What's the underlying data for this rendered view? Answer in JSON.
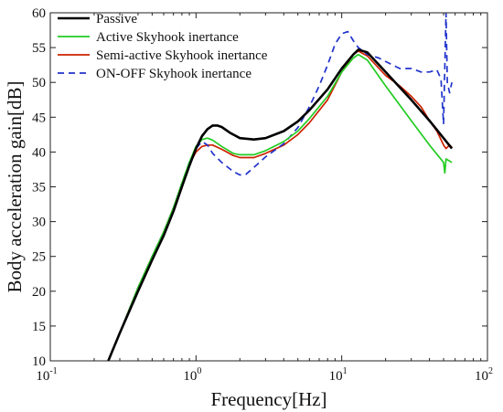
{
  "chart_data": {
    "type": "line",
    "title": "",
    "xlabel": "Frequency[Hz]",
    "ylabel": "Body acceleration gain[dB]",
    "xscale": "log",
    "xlim": [
      0.1,
      100
    ],
    "ylim": [
      10,
      60
    ],
    "x_ticks": [
      {
        "base": "10",
        "exp": "-1"
      },
      {
        "base": "10",
        "exp": "0"
      },
      {
        "base": "10",
        "exp": "1"
      },
      {
        "base": "10",
        "exp": "2"
      }
    ],
    "y_ticks": [
      "10",
      "15",
      "20",
      "25",
      "30",
      "35",
      "40",
      "45",
      "50",
      "55",
      "60"
    ],
    "grid": false,
    "legend_position": "top-left",
    "series": [
      {
        "name": "Passive",
        "color": "#000000",
        "style": "solid",
        "x": [
          0.25,
          0.3,
          0.4,
          0.5,
          0.6,
          0.7,
          0.8,
          0.9,
          1.0,
          1.1,
          1.2,
          1.3,
          1.4,
          1.5,
          1.7,
          2.0,
          2.5,
          3.0,
          4.0,
          5.0,
          6.0,
          8.0,
          10.0,
          12.0,
          13.0,
          15.0,
          20.0,
          30.0,
          40.0,
          50.0,
          57.0
        ],
        "y": [
          10.0,
          14.0,
          20.0,
          24.5,
          28.0,
          31.5,
          35.0,
          38.0,
          40.5,
          42.3,
          43.3,
          43.8,
          43.8,
          43.6,
          42.8,
          42.0,
          41.8,
          42.0,
          43.0,
          44.4,
          46.0,
          49.0,
          52.0,
          54.0,
          54.7,
          54.3,
          51.5,
          47.5,
          44.5,
          42.0,
          40.5
        ]
      },
      {
        "name": "Active Skyhook inertance",
        "color": "#22cc22",
        "style": "solid",
        "x": [
          0.25,
          0.3,
          0.4,
          0.5,
          0.6,
          0.7,
          0.8,
          0.9,
          1.0,
          1.1,
          1.2,
          1.3,
          1.5,
          1.8,
          2.0,
          2.5,
          3.0,
          4.0,
          5.0,
          6.0,
          8.0,
          10.0,
          12.0,
          13.0,
          15.0,
          20.0,
          30.0,
          40.0,
          50.0,
          51.0,
          52.0,
          57.0
        ],
        "y": [
          10.0,
          14.0,
          20.5,
          25.0,
          28.5,
          32.0,
          35.5,
          38.5,
          40.8,
          41.8,
          42.0,
          41.7,
          40.8,
          39.8,
          39.6,
          39.6,
          40.2,
          41.5,
          43.0,
          44.8,
          48.0,
          51.5,
          53.5,
          54.0,
          53.2,
          49.5,
          44.5,
          41.0,
          38.5,
          37.0,
          39.0,
          38.5
        ]
      },
      {
        "name": "Semi-active Skyhook inertance",
        "color": "#cc2200",
        "style": "solid",
        "x": [
          0.25,
          0.3,
          0.4,
          0.5,
          0.6,
          0.7,
          0.8,
          0.9,
          1.0,
          1.1,
          1.2,
          1.3,
          1.5,
          1.8,
          2.0,
          2.5,
          3.0,
          4.0,
          5.0,
          6.0,
          8.0,
          10.0,
          12.0,
          13.0,
          15.0,
          20.0,
          25.0,
          30.0,
          35.0,
          40.0,
          45.0,
          50.0,
          52.0,
          55.0,
          57.0
        ],
        "y": [
          10.0,
          14.0,
          20.5,
          25.0,
          28.5,
          32.0,
          35.5,
          38.3,
          40.0,
          40.8,
          41.0,
          41.0,
          40.4,
          39.5,
          39.2,
          39.2,
          39.8,
          41.0,
          42.5,
          44.2,
          47.5,
          51.5,
          54.0,
          54.5,
          53.8,
          51.0,
          49.5,
          48.0,
          46.5,
          44.5,
          43.0,
          41.0,
          40.5,
          41.0,
          40.7
        ]
      },
      {
        "name": "ON-OFF Skyhook inertance",
        "color": "#2233cc",
        "style": "dashed",
        "x": [
          0.25,
          0.3,
          0.4,
          0.5,
          0.6,
          0.7,
          0.8,
          0.9,
          1.0,
          1.1,
          1.2,
          1.3,
          1.5,
          1.8,
          2.0,
          2.2,
          2.5,
          3.0,
          4.0,
          5.0,
          6.0,
          7.0,
          8.0,
          9.0,
          10.0,
          11.0,
          12.0,
          13.0,
          15.0,
          18.0,
          20.0,
          25.0,
          30.0,
          35.0,
          40.0,
          45.0,
          48.0,
          50.0,
          52.0,
          53.0,
          55.0,
          57.0
        ],
        "y": [
          10.0,
          14.0,
          20.5,
          25.0,
          28.5,
          32.0,
          35.5,
          38.5,
          40.5,
          41.5,
          41.0,
          39.8,
          38.5,
          37.2,
          36.7,
          36.8,
          37.8,
          39.3,
          41.2,
          43.5,
          46.5,
          49.5,
          52.5,
          55.5,
          57.0,
          57.3,
          56.0,
          55.0,
          54.0,
          53.5,
          53.0,
          52.0,
          52.0,
          51.5,
          51.5,
          51.8,
          50.5,
          44.0,
          60.0,
          50.0,
          48.5,
          50.0
        ]
      }
    ]
  }
}
